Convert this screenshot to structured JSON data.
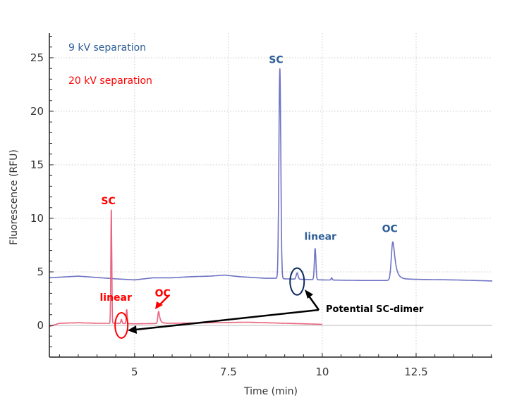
{
  "chart_data": {
    "type": "line",
    "title": "",
    "xlabel": "Time (min)",
    "ylabel": "Fluorescence (RFU)",
    "xlim": [
      2.73,
      14.53
    ],
    "ylim": [
      -2.96,
      27.3
    ],
    "xticks": [
      5,
      7.5,
      10,
      12.5
    ],
    "xtick_labels": [
      "5",
      "7.5",
      "10",
      "12.5"
    ],
    "yticks": [
      0,
      5,
      10,
      15,
      20,
      25
    ],
    "ytick_labels": [
      "0",
      "5",
      "10",
      "15",
      "20",
      "25"
    ],
    "x_minor_step": 0.5,
    "y_minor_step": 1,
    "grid": true,
    "zero_line": true,
    "legend": [
      {
        "label": "9 kV separation",
        "color": "#2e5e99"
      },
      {
        "label": "20 kV separation",
        "color": "#ff0000"
      }
    ],
    "legend_position": "top-left",
    "series": [
      {
        "name": "9 kV separation",
        "color": "#6f73c4",
        "baseline": [
          [
            2.73,
            4.45
          ],
          [
            3.5,
            4.6
          ],
          [
            4.5,
            4.35
          ],
          [
            5.0,
            4.25
          ],
          [
            5.5,
            4.45
          ],
          [
            6.0,
            4.45
          ],
          [
            6.5,
            4.55
          ],
          [
            7.0,
            4.6
          ],
          [
            7.4,
            4.7
          ],
          [
            7.8,
            4.55
          ],
          [
            8.5,
            4.4
          ],
          [
            8.75,
            4.4
          ]
        ],
        "peaks": [
          {
            "name": "SC",
            "x": 8.87,
            "y": 24.0,
            "width": 0.05
          },
          {
            "name": "dimer",
            "x": 9.33,
            "y": 4.9,
            "width": 0.05
          },
          {
            "name": "linear",
            "x": 9.81,
            "y": 7.2,
            "width": 0.04
          },
          {
            "name": "minor",
            "x": 10.25,
            "y": 4.45,
            "width": 0.03
          },
          {
            "name": "OC",
            "x": 11.88,
            "y": 7.8,
            "width": 0.08,
            "tail": 0.25
          }
        ],
        "baseline_after": [
          [
            9.0,
            4.35
          ],
          [
            10.0,
            4.25
          ],
          [
            11.0,
            4.2
          ],
          [
            11.7,
            4.2
          ],
          [
            12.5,
            4.3
          ],
          [
            13.5,
            4.25
          ],
          [
            14.53,
            4.15
          ]
        ]
      },
      {
        "name": "20 kV separation",
        "color": "#e8637e",
        "baseline": [
          [
            2.73,
            -0.1
          ],
          [
            3.0,
            0.2
          ],
          [
            3.5,
            0.25
          ],
          [
            4.0,
            0.2
          ],
          [
            4.3,
            0.2
          ]
        ],
        "peaks": [
          {
            "name": "SC",
            "x": 4.38,
            "y": 10.9,
            "width": 0.025
          },
          {
            "name": "dimer",
            "x": 4.65,
            "y": 0.55,
            "width": 0.03
          },
          {
            "name": "linear",
            "x": 4.79,
            "y": 1.5,
            "width": 0.025
          },
          {
            "name": "OC",
            "x": 5.64,
            "y": 1.3,
            "width": 0.04,
            "tail": 0.15
          }
        ],
        "baseline_after": [
          [
            4.5,
            0.2
          ],
          [
            5.0,
            0.15
          ],
          [
            6.0,
            0.2
          ],
          [
            7.0,
            0.25
          ],
          [
            8.0,
            0.3
          ],
          [
            9.0,
            0.2
          ],
          [
            10.0,
            0.1
          ]
        ]
      }
    ],
    "annotations": {
      "blue_labels": [
        {
          "text": "SC",
          "x": 8.77,
          "y": 24.5
        },
        {
          "text": "linear",
          "x": 9.95,
          "y": 8.0
        },
        {
          "text": "OC",
          "x": 11.8,
          "y": 8.7
        }
      ],
      "red_labels": [
        {
          "text": "SC",
          "x": 4.3,
          "y": 11.3
        },
        {
          "text": "linear",
          "x": 4.5,
          "y": 2.3
        },
        {
          "text": "OC",
          "x": 5.75,
          "y": 2.7
        }
      ],
      "callout": {
        "text": "Potential SC-dimer",
        "targets": [
          {
            "x": 9.33,
            "y": 4.5
          },
          {
            "x": 4.65,
            "y": -0.1
          }
        ]
      }
    }
  }
}
